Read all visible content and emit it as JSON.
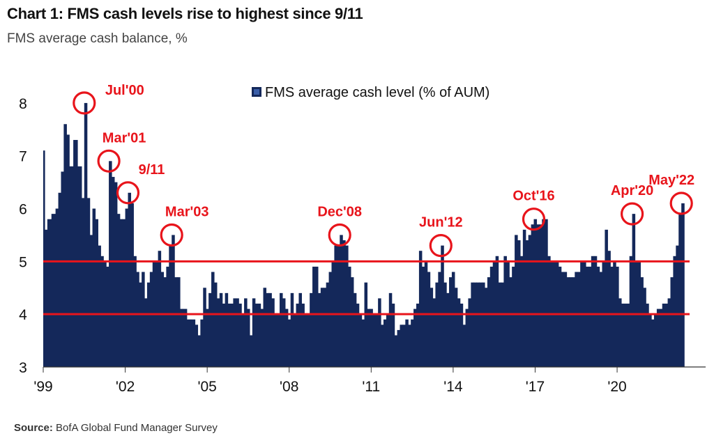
{
  "title": "Chart 1: FMS cash levels rise to highest since 9/11",
  "subtitle": "FMS average cash balance, %",
  "source_label": "Source:",
  "source_text": "BofA Global Fund Manager Survey",
  "colors": {
    "bar": "#14285a",
    "accent": "#e8141b",
    "axis": "#333333"
  },
  "chart_data": {
    "type": "bar",
    "title": "Chart 1: FMS cash levels rise to highest since 9/11",
    "subtitle": "FMS average cash balance, %",
    "ylim": [
      3,
      8.5
    ],
    "xlim": [
      1999.0,
      2022.55
    ],
    "y_ticks": [
      3,
      4,
      5,
      6,
      7,
      8
    ],
    "x_ticks": [
      {
        "value": 1999,
        "label": "'99"
      },
      {
        "value": 2002,
        "label": "'02"
      },
      {
        "value": 2005,
        "label": "'05"
      },
      {
        "value": 2008,
        "label": "'08"
      },
      {
        "value": 2011,
        "label": "'11"
      },
      {
        "value": 2014,
        "label": "'14"
      },
      {
        "value": 2017,
        "label": "'17"
      },
      {
        "value": 2020,
        "label": "'20"
      }
    ],
    "legend": {
      "label": "FMS average cash level (% of AUM)",
      "position": "top-center"
    },
    "reference_lines": [
      5,
      4
    ],
    "series": [
      {
        "name": "FMS average cash level (% of AUM)",
        "points": [
          [
            1999.0,
            7.1
          ],
          [
            1999.05,
            5.6
          ],
          [
            1999.15,
            5.8
          ],
          [
            1999.3,
            5.9
          ],
          [
            1999.45,
            6.0
          ],
          [
            1999.55,
            6.3
          ],
          [
            1999.65,
            6.7
          ],
          [
            1999.75,
            7.6
          ],
          [
            1999.85,
            7.4
          ],
          [
            1999.95,
            6.8
          ],
          [
            2000.1,
            7.3
          ],
          [
            2000.25,
            6.8
          ],
          [
            2000.4,
            6.2
          ],
          [
            2000.5,
            8.0
          ],
          [
            2000.6,
            6.2
          ],
          [
            2000.7,
            5.5
          ],
          [
            2000.8,
            6.0
          ],
          [
            2000.9,
            5.8
          ],
          [
            2001.0,
            5.3
          ],
          [
            2001.1,
            5.1
          ],
          [
            2001.2,
            5.0
          ],
          [
            2001.3,
            4.9
          ],
          [
            2001.4,
            6.9
          ],
          [
            2001.5,
            6.6
          ],
          [
            2001.6,
            6.5
          ],
          [
            2001.7,
            5.9
          ],
          [
            2001.8,
            5.8
          ],
          [
            2001.9,
            5.8
          ],
          [
            2002.0,
            6.0
          ],
          [
            2002.1,
            6.3
          ],
          [
            2002.2,
            6.1
          ],
          [
            2002.3,
            5.1
          ],
          [
            2002.4,
            4.8
          ],
          [
            2002.5,
            4.6
          ],
          [
            2002.6,
            4.8
          ],
          [
            2002.7,
            4.3
          ],
          [
            2002.8,
            4.6
          ],
          [
            2002.9,
            4.8
          ],
          [
            2003.0,
            5.0
          ],
          [
            2003.1,
            5.0
          ],
          [
            2003.2,
            5.2
          ],
          [
            2003.3,
            4.8
          ],
          [
            2003.4,
            4.7
          ],
          [
            2003.5,
            4.9
          ],
          [
            2003.6,
            5.3
          ],
          [
            2003.7,
            5.5
          ],
          [
            2003.8,
            4.7
          ],
          [
            2003.9,
            4.7
          ],
          [
            2004.0,
            4.1
          ],
          [
            2004.1,
            4.1
          ],
          [
            2004.25,
            3.9
          ],
          [
            2004.4,
            3.9
          ],
          [
            2004.55,
            3.8
          ],
          [
            2004.65,
            3.6
          ],
          [
            2004.75,
            3.9
          ],
          [
            2004.85,
            4.5
          ],
          [
            2004.95,
            4.1
          ],
          [
            2005.05,
            4.4
          ],
          [
            2005.15,
            4.8
          ],
          [
            2005.25,
            4.6
          ],
          [
            2005.35,
            4.3
          ],
          [
            2005.45,
            4.4
          ],
          [
            2005.55,
            4.2
          ],
          [
            2005.65,
            4.4
          ],
          [
            2005.75,
            4.2
          ],
          [
            2005.85,
            4.2
          ],
          [
            2005.95,
            4.3
          ],
          [
            2006.05,
            4.3
          ],
          [
            2006.15,
            4.2
          ],
          [
            2006.25,
            4.0
          ],
          [
            2006.35,
            4.3
          ],
          [
            2006.45,
            4.1
          ],
          [
            2006.55,
            3.6
          ],
          [
            2006.65,
            4.3
          ],
          [
            2006.75,
            4.2
          ],
          [
            2006.85,
            4.2
          ],
          [
            2006.95,
            4.1
          ],
          [
            2007.05,
            4.5
          ],
          [
            2007.15,
            4.4
          ],
          [
            2007.25,
            4.4
          ],
          [
            2007.35,
            4.3
          ],
          [
            2007.45,
            4.0
          ],
          [
            2007.55,
            4.0
          ],
          [
            2007.65,
            4.4
          ],
          [
            2007.75,
            4.3
          ],
          [
            2007.85,
            4.1
          ],
          [
            2007.95,
            3.9
          ],
          [
            2008.05,
            4.4
          ],
          [
            2008.15,
            4.0
          ],
          [
            2008.25,
            4.2
          ],
          [
            2008.35,
            4.4
          ],
          [
            2008.45,
            4.2
          ],
          [
            2008.55,
            4.0
          ],
          [
            2008.65,
            4.0
          ],
          [
            2008.75,
            4.4
          ],
          [
            2008.85,
            4.9
          ],
          [
            2008.95,
            4.9
          ],
          [
            2009.05,
            4.4
          ],
          [
            2009.15,
            4.5
          ],
          [
            2009.25,
            4.5
          ],
          [
            2009.35,
            4.6
          ],
          [
            2009.45,
            4.8
          ],
          [
            2009.55,
            5.0
          ],
          [
            2009.65,
            5.3
          ],
          [
            2009.75,
            5.3
          ],
          [
            2009.85,
            5.5
          ],
          [
            2009.95,
            5.4
          ],
          [
            2010.05,
            5.3
          ],
          [
            2010.15,
            4.9
          ],
          [
            2010.25,
            4.7
          ],
          [
            2010.35,
            4.4
          ],
          [
            2010.45,
            4.2
          ],
          [
            2010.55,
            4.0
          ],
          [
            2010.65,
            3.9
          ],
          [
            2010.75,
            4.6
          ],
          [
            2010.85,
            4.1
          ],
          [
            2010.95,
            4.1
          ],
          [
            2011.05,
            4.0
          ],
          [
            2011.15,
            4.0
          ],
          [
            2011.25,
            4.3
          ],
          [
            2011.35,
            3.8
          ],
          [
            2011.45,
            3.9
          ],
          [
            2011.55,
            4.0
          ],
          [
            2011.65,
            4.4
          ],
          [
            2011.75,
            4.2
          ],
          [
            2011.85,
            3.6
          ],
          [
            2011.95,
            3.7
          ],
          [
            2012.05,
            3.8
          ],
          [
            2012.15,
            3.8
          ],
          [
            2012.25,
            3.9
          ],
          [
            2012.35,
            3.8
          ],
          [
            2012.45,
            3.9
          ],
          [
            2012.55,
            4.1
          ],
          [
            2012.65,
            4.2
          ],
          [
            2012.75,
            5.2
          ],
          [
            2012.85,
            4.9
          ],
          [
            2012.95,
            5.0
          ],
          [
            2013.05,
            4.8
          ],
          [
            2013.15,
            4.5
          ],
          [
            2013.25,
            4.3
          ],
          [
            2013.35,
            4.6
          ],
          [
            2013.45,
            4.8
          ],
          [
            2013.55,
            5.3
          ],
          [
            2013.65,
            4.6
          ],
          [
            2013.75,
            4.4
          ],
          [
            2013.85,
            4.7
          ],
          [
            2013.95,
            4.8
          ],
          [
            2014.05,
            4.5
          ],
          [
            2014.15,
            4.3
          ],
          [
            2014.25,
            4.2
          ],
          [
            2014.35,
            3.8
          ],
          [
            2014.45,
            4.1
          ],
          [
            2014.55,
            4.3
          ],
          [
            2014.65,
            4.6
          ],
          [
            2014.75,
            4.6
          ],
          [
            2014.85,
            4.6
          ],
          [
            2014.95,
            4.6
          ],
          [
            2015.05,
            4.6
          ],
          [
            2015.15,
            4.5
          ],
          [
            2015.25,
            4.7
          ],
          [
            2015.35,
            4.9
          ],
          [
            2015.45,
            5.0
          ],
          [
            2015.55,
            5.1
          ],
          [
            2015.65,
            4.6
          ],
          [
            2015.75,
            4.6
          ],
          [
            2015.85,
            5.1
          ],
          [
            2015.95,
            5.0
          ],
          [
            2016.05,
            4.7
          ],
          [
            2016.15,
            4.9
          ],
          [
            2016.25,
            5.5
          ],
          [
            2016.35,
            5.4
          ],
          [
            2016.45,
            5.1
          ],
          [
            2016.55,
            5.6
          ],
          [
            2016.65,
            5.4
          ],
          [
            2016.75,
            5.5
          ],
          [
            2016.85,
            5.7
          ],
          [
            2016.95,
            5.8
          ],
          [
            2017.05,
            5.7
          ],
          [
            2017.15,
            5.7
          ],
          [
            2017.25,
            5.8
          ],
          [
            2017.35,
            5.8
          ],
          [
            2017.45,
            5.1
          ],
          [
            2017.55,
            5.0
          ],
          [
            2017.65,
            5.0
          ],
          [
            2017.75,
            5.0
          ],
          [
            2017.85,
            4.9
          ],
          [
            2017.95,
            4.8
          ],
          [
            2018.05,
            4.8
          ],
          [
            2018.15,
            4.7
          ],
          [
            2018.25,
            4.7
          ],
          [
            2018.35,
            4.7
          ],
          [
            2018.45,
            4.8
          ],
          [
            2018.55,
            4.8
          ],
          [
            2018.65,
            5.0
          ],
          [
            2018.75,
            5.0
          ],
          [
            2018.85,
            4.9
          ],
          [
            2018.95,
            4.9
          ],
          [
            2019.05,
            5.1
          ],
          [
            2019.15,
            5.1
          ],
          [
            2019.25,
            4.9
          ],
          [
            2019.35,
            4.8
          ],
          [
            2019.45,
            5.0
          ],
          [
            2019.55,
            5.6
          ],
          [
            2019.65,
            5.2
          ],
          [
            2019.75,
            4.9
          ],
          [
            2019.85,
            5.0
          ],
          [
            2019.95,
            4.9
          ],
          [
            2020.05,
            4.3
          ],
          [
            2020.15,
            4.2
          ],
          [
            2020.25,
            4.2
          ],
          [
            2020.35,
            4.2
          ],
          [
            2020.45,
            5.1
          ],
          [
            2020.55,
            5.9
          ],
          [
            2020.65,
            5.0
          ],
          [
            2020.75,
            5.0
          ],
          [
            2020.85,
            4.7
          ],
          [
            2020.95,
            4.5
          ],
          [
            2021.05,
            4.2
          ],
          [
            2021.15,
            4.0
          ],
          [
            2021.25,
            3.9
          ],
          [
            2021.35,
            4.0
          ],
          [
            2021.45,
            4.1
          ],
          [
            2021.55,
            4.1
          ],
          [
            2021.65,
            4.2
          ],
          [
            2021.75,
            4.2
          ],
          [
            2021.85,
            4.3
          ],
          [
            2021.95,
            4.7
          ],
          [
            2022.05,
            5.1
          ],
          [
            2022.15,
            5.3
          ],
          [
            2022.25,
            5.9
          ],
          [
            2022.35,
            6.1
          ]
        ]
      }
    ],
    "annotations": [
      {
        "label": "Jul'00",
        "x": 2000.5,
        "y": 8.0
      },
      {
        "label": "Mar'01",
        "x": 2001.4,
        "y": 6.9
      },
      {
        "label": "9/11",
        "x": 2002.1,
        "y": 6.3
      },
      {
        "label": "Mar'03",
        "x": 2003.7,
        "y": 5.5
      },
      {
        "label": "Dec'08",
        "x": 2009.85,
        "y": 5.5
      },
      {
        "label": "Jun'12",
        "x": 2013.55,
        "y": 5.3
      },
      {
        "label": "Oct'16",
        "x": 2016.95,
        "y": 5.8
      },
      {
        "label": "Apr'20",
        "x": 2020.55,
        "y": 5.9
      },
      {
        "label": "May'22",
        "x": 2022.35,
        "y": 6.1
      }
    ]
  }
}
